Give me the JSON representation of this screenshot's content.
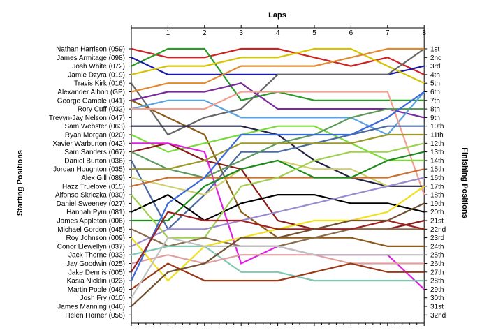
{
  "chart_data": {
    "type": "line",
    "title": "Laps",
    "ylabel_left": "Starting Positions",
    "ylabel_right": "Finishing Positions",
    "x": [
      0,
      1,
      2,
      3,
      4,
      5,
      6,
      7,
      8
    ],
    "x_tick_labels": [
      "1",
      "2",
      "3",
      "4",
      "5",
      "6",
      "7",
      "8"
    ],
    "y_range": [
      1,
      32
    ],
    "left_labels": [
      "Nathan Harrison (059)",
      "James Armitage (098)",
      "Josh White (072)",
      "Jamie Dzyra (019)",
      "Travis Kirk (016)",
      "Alexander Albon (GP)",
      "George Gamble (041)",
      "Rory Cuff (032)",
      "Trevyn-Jay Nelson (047)",
      "Sam Webster (063)",
      "Ryan Morgan (020)",
      "Xavier Warburton (042)",
      "Sam Sanders (067)",
      "Daniel Burton (036)",
      "Jordan Houghton (035)",
      "Alex Gill (089)",
      "Hazz Truelove (015)",
      "Alfonso Skriczka (030)",
      "Daniel Sweeney (027)",
      "Hannah Pym (081)",
      "James Appleton (006)",
      "Michael Gordon (045)",
      "Roy Johnson (009)",
      "Conor Llewellyn (037)",
      "Jack Thorne (033)",
      "Jay Goodwin (025)",
      "Jake Dennis (005)",
      "Kasia Nicklin (023)",
      "Martin Poole (049)",
      "Josh Fry (010)",
      "James Manning (046)",
      "Helen Horner (056)"
    ],
    "right_labels": [
      "1st",
      "2nd",
      "3rd",
      "4th",
      "5th",
      "6th",
      "7th",
      "8th",
      "9th",
      "10th",
      "11th",
      "12th",
      "13th",
      "14th",
      "15th",
      "16th",
      "17th",
      "18th",
      "19th",
      "20th",
      "21st",
      "22nd",
      "23rd",
      "24th",
      "25th",
      "26th",
      "27th",
      "28th",
      "29th",
      "30th",
      "31st",
      "32nd"
    ],
    "series": [
      {
        "color": "#CC2222",
        "values": [
          1,
          2,
          2,
          1,
          1,
          2,
          3,
          2,
          4
        ]
      },
      {
        "color": "#2A9A2A",
        "values": [
          3,
          1,
          1,
          7,
          6,
          7,
          7,
          7,
          7
        ]
      },
      {
        "color": "#1A1AAA",
        "values": [
          2,
          4,
          4,
          4,
          4,
          4,
          4,
          4,
          3
        ]
      },
      {
        "color": "#D4C400",
        "values": [
          4,
          3,
          3,
          2,
          2,
          1,
          1,
          3,
          5
        ]
      },
      {
        "color": "#666666",
        "values": [
          5,
          11,
          9,
          8,
          4,
          4,
          4,
          4,
          1
        ]
      },
      {
        "color": "#E08A30",
        "values": [
          6,
          5,
          5,
          3,
          3,
          3,
          2,
          1,
          1
        ]
      },
      {
        "color": "#7A2A9A",
        "values": [
          7,
          6,
          6,
          5,
          8,
          8,
          8,
          8,
          9
        ]
      },
      {
        "color": "#8C5A1A",
        "values": [
          7,
          9,
          11,
          20,
          23,
          23,
          23,
          24,
          24
        ]
      },
      {
        "color": "#5BA3E0",
        "values": [
          8,
          7,
          7,
          9,
          9,
          9,
          9,
          11,
          6
        ]
      },
      {
        "color": "#F4A090",
        "values": [
          8,
          8,
          8,
          6,
          6,
          6,
          6,
          6,
          18
        ]
      },
      {
        "color": "#222244",
        "values": [
          10,
          10,
          10,
          10,
          11,
          14,
          16,
          17,
          17
        ]
      },
      {
        "color": "#7ADA3A",
        "values": [
          11,
          13,
          12,
          11,
          10,
          10,
          12,
          14,
          14
        ]
      },
      {
        "color": "#8A1A1A",
        "values": [
          13,
          12,
          14,
          15,
          21,
          22,
          22,
          22,
          21
        ]
      },
      {
        "color": "#E020E0",
        "values": [
          12,
          12,
          13,
          26,
          24,
          25,
          25,
          25,
          29
        ]
      },
      {
        "color": "#4A6AA0",
        "values": [
          14,
          22,
          18,
          13,
          13,
          12,
          11,
          10,
          10
        ]
      },
      {
        "color": "#5A9A5A",
        "values": [
          13,
          15,
          16,
          14,
          12,
          11,
          9,
          8,
          8
        ]
      },
      {
        "color": "#9A9A2A",
        "values": [
          15,
          15,
          14,
          12,
          12,
          12,
          12,
          11,
          11
        ]
      },
      {
        "color": "#D0D070",
        "values": [
          16,
          17,
          18,
          15,
          14,
          15,
          15,
          17,
          16
        ]
      },
      {
        "color": "#C87030",
        "values": [
          17,
          16,
          16,
          16,
          16,
          16,
          16,
          16,
          15
        ]
      },
      {
        "color": "#000000",
        "values": [
          20,
          18,
          21,
          19,
          18,
          18,
          19,
          19,
          20
        ]
      },
      {
        "color": "#1E8A1E",
        "values": [
          21,
          21,
          17,
          15,
          14,
          16,
          16,
          14,
          13
        ]
      },
      {
        "color": "#9A8AD0",
        "values": [
          24,
          22,
          22,
          21,
          20,
          19,
          18,
          17,
          16
        ]
      },
      {
        "color": "#A0D050",
        "values": [
          18,
          23,
          23,
          17,
          16,
          14,
          13,
          13,
          12
        ]
      },
      {
        "color": "#8A6A4A",
        "values": [
          22,
          24,
          23,
          24,
          24,
          23,
          22,
          22,
          22
        ]
      },
      {
        "color": "#80C8B0",
        "values": [
          25,
          24,
          24,
          27,
          27,
          28,
          28,
          28,
          28
        ]
      },
      {
        "color": "#E0A0A0",
        "values": [
          26,
          25,
          26,
          25,
          25,
          25,
          26,
          26,
          26
        ]
      },
      {
        "color": "#3A6ADA",
        "values": [
          28,
          19,
          16,
          11,
          11,
          11,
          11,
          9,
          6
        ]
      },
      {
        "color": "#F0E020",
        "values": [
          23,
          28,
          24,
          23,
          22,
          21,
          21,
          20,
          17
        ]
      },
      {
        "color": "#9A3A1A",
        "values": [
          29,
          26,
          28,
          28,
          28,
          27,
          26,
          27,
          27
        ]
      },
      {
        "color": "#C0C0C0",
        "values": [
          30,
          23,
          24,
          24,
          24,
          25,
          25,
          25,
          25
        ]
      },
      {
        "color": "#A02020",
        "values": [
          27,
          20,
          21,
          21,
          22,
          22,
          22,
          21,
          22
        ]
      },
      {
        "color": "#705030",
        "values": [
          31,
          27,
          26,
          23,
          23,
          22,
          21,
          21,
          19
        ]
      }
    ]
  }
}
